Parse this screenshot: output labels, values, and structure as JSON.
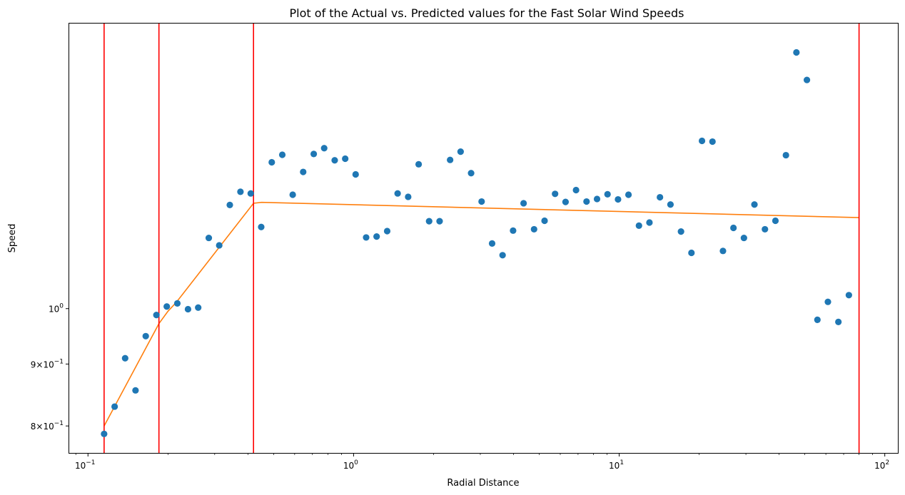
{
  "chart_data": {
    "type": "scatter",
    "title": "Plot of the Actual vs. Predicted values for the Fast Solar Wind Speeds",
    "xlabel": "Radial Distance",
    "ylabel": "Speed",
    "xscale": "log",
    "yscale": "log",
    "xlim": [
      0.085,
      112
    ],
    "ylim": [
      0.76,
      1.72
    ],
    "grid": false,
    "legend": "none",
    "x_ticks": [
      {
        "value": 0.1,
        "base": "10",
        "exp": "−1"
      },
      {
        "value": 1,
        "base": "10",
        "exp": "0"
      },
      {
        "value": 10,
        "base": "10",
        "exp": "1"
      },
      {
        "value": 100,
        "base": "10",
        "exp": "2"
      }
    ],
    "y_ticks": [
      {
        "value": 0.8,
        "coef": "8×",
        "base": "10",
        "exp": "−1"
      },
      {
        "value": 0.9,
        "coef": "9×",
        "base": "10",
        "exp": "−1"
      },
      {
        "value": 1.0,
        "coef": "",
        "base": "10",
        "exp": "0"
      }
    ],
    "actual": {
      "color": "#1f77b4",
      "points": [
        [
          0.115,
          0.788
        ],
        [
          0.126,
          0.83
        ],
        [
          0.138,
          0.91
        ],
        [
          0.151,
          0.856
        ],
        [
          0.165,
          0.949
        ],
        [
          0.181,
          0.988
        ],
        [
          0.198,
          1.004
        ],
        [
          0.217,
          1.01
        ],
        [
          0.238,
          0.999
        ],
        [
          0.26,
          1.002
        ],
        [
          0.285,
          1.144
        ],
        [
          0.312,
          1.128
        ],
        [
          0.342,
          1.218
        ],
        [
          0.375,
          1.249
        ],
        [
          0.41,
          1.245
        ],
        [
          0.449,
          1.168
        ],
        [
          0.492,
          1.321
        ],
        [
          0.539,
          1.34
        ],
        [
          0.59,
          1.242
        ],
        [
          0.646,
          1.297
        ],
        [
          0.708,
          1.342
        ],
        [
          0.775,
          1.357
        ],
        [
          0.849,
          1.326
        ],
        [
          0.93,
          1.33
        ],
        [
          1.018,
          1.291
        ],
        [
          1.115,
          1.145
        ],
        [
          1.221,
          1.147
        ],
        [
          1.338,
          1.159
        ],
        [
          1.465,
          1.245
        ],
        [
          1.605,
          1.237
        ],
        [
          1.758,
          1.316
        ],
        [
          1.925,
          1.181
        ],
        [
          2.108,
          1.181
        ],
        [
          2.309,
          1.327
        ],
        [
          2.529,
          1.348
        ],
        [
          2.77,
          1.294
        ],
        [
          3.034,
          1.226
        ],
        [
          3.323,
          1.132
        ],
        [
          3.639,
          1.107
        ],
        [
          3.986,
          1.16
        ],
        [
          4.366,
          1.222
        ],
        [
          4.781,
          1.163
        ],
        [
          5.237,
          1.182
        ],
        [
          5.736,
          1.244
        ],
        [
          6.282,
          1.225
        ],
        [
          6.88,
          1.253
        ],
        [
          7.535,
          1.226
        ],
        [
          8.253,
          1.232
        ],
        [
          9.039,
          1.243
        ],
        [
          9.9,
          1.231
        ],
        [
          10.84,
          1.242
        ],
        [
          11.87,
          1.171
        ],
        [
          13.0,
          1.178
        ],
        [
          14.24,
          1.236
        ],
        [
          15.6,
          1.219
        ],
        [
          17.09,
          1.158
        ],
        [
          18.71,
          1.112
        ],
        [
          20.5,
          1.376
        ],
        [
          22.45,
          1.374
        ],
        [
          24.59,
          1.116
        ],
        [
          26.93,
          1.166
        ],
        [
          29.49,
          1.144
        ],
        [
          32.3,
          1.219
        ],
        [
          35.38,
          1.163
        ],
        [
          38.75,
          1.182
        ],
        [
          42.44,
          1.339
        ],
        [
          46.48,
          1.628
        ],
        [
          50.91,
          1.545
        ],
        [
          55.76,
          0.979
        ],
        [
          61.07,
          1.013
        ],
        [
          66.88,
          0.975
        ],
        [
          73.25,
          1.026
        ]
      ]
    },
    "predicted": {
      "color": "#ff7f0e",
      "points": [
        [
          0.115,
          0.8
        ],
        [
          0.185,
          0.972
        ],
        [
          0.2,
          0.995
        ],
        [
          0.215,
          1.012
        ],
        [
          0.42,
          1.222
        ],
        [
          0.45,
          1.224
        ],
        [
          80.0,
          1.189
        ]
      ]
    },
    "breakpoints": {
      "color": "#ff0000",
      "x": [
        0.115,
        0.185,
        0.42,
        80.0
      ]
    }
  }
}
